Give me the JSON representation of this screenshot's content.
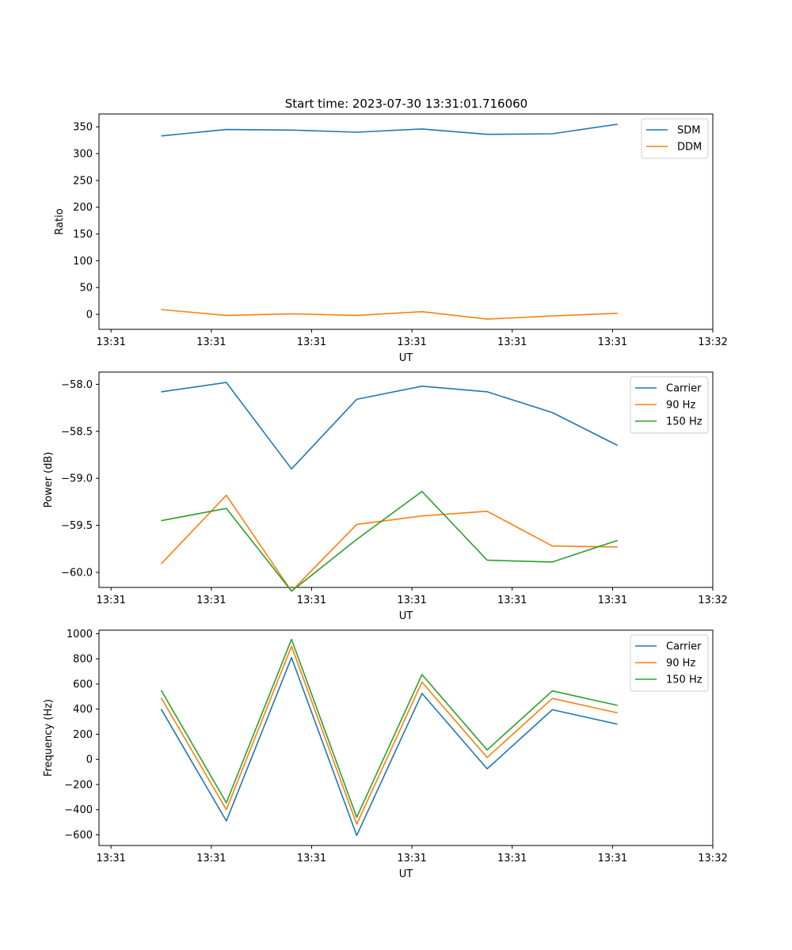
{
  "figure": {
    "title": "Start time: 2023-07-30 13:31:01.716060"
  },
  "chart_data": [
    {
      "type": "line",
      "xlabel": "UT",
      "ylabel": "Ratio",
      "x_tick_labels": [
        "13:31",
        "13:31",
        "13:31",
        "13:31",
        "13:31",
        "13:31",
        "13:32"
      ],
      "x": [
        0.5,
        1.15,
        1.8,
        2.45,
        3.1,
        3.75,
        4.4,
        5.05
      ],
      "xlim": [
        -0.12,
        6.0
      ],
      "ylim": [
        -28,
        374
      ],
      "yticks": [
        0,
        50,
        100,
        150,
        200,
        250,
        300,
        350
      ],
      "y_tick_labels": [
        "0",
        "50",
        "100",
        "150",
        "200",
        "250",
        "300",
        "350"
      ],
      "legend": "top-right",
      "series": [
        {
          "name": "SDM",
          "color": "#1f77b4",
          "values": [
            333,
            345,
            344,
            340,
            346,
            336,
            337,
            355
          ]
        },
        {
          "name": "DDM",
          "color": "#ff7f0e",
          "values": [
            9,
            -2,
            1,
            -2,
            5,
            -9,
            -3,
            2
          ]
        }
      ]
    },
    {
      "type": "line",
      "xlabel": "UT",
      "ylabel": "Power (dB)",
      "x_tick_labels": [
        "13:31",
        "13:31",
        "13:31",
        "13:31",
        "13:31",
        "13:31",
        "13:32"
      ],
      "x": [
        0.5,
        1.15,
        1.8,
        2.45,
        3.1,
        3.75,
        4.4,
        5.05
      ],
      "xlim": [
        -0.12,
        6.0
      ],
      "ylim": [
        -60.16,
        -57.87
      ],
      "yticks": [
        -60.0,
        -59.5,
        -59.0,
        -58.5,
        -58.0
      ],
      "y_tick_labels": [
        "−60.0",
        "−59.5",
        "−59.0",
        "−58.5",
        "−58.0"
      ],
      "legend": "top-right",
      "series": [
        {
          "name": "Carrier",
          "color": "#1f77b4",
          "values": [
            -58.08,
            -57.98,
            -58.9,
            -58.16,
            -58.02,
            -58.08,
            -58.3,
            -58.65
          ]
        },
        {
          "name": "90 Hz",
          "color": "#ff7f0e",
          "values": [
            -59.91,
            -59.18,
            -60.2,
            -59.49,
            -59.4,
            -59.35,
            -59.72,
            -59.73
          ]
        },
        {
          "name": "150 Hz",
          "color": "#2ca02c",
          "values": [
            -59.45,
            -59.32,
            -60.2,
            -59.65,
            -59.14,
            -59.87,
            -59.89,
            -59.66
          ]
        }
      ]
    },
    {
      "type": "line",
      "xlabel": "UT",
      "ylabel": "Frequency (Hz)",
      "x_tick_labels": [
        "13:31",
        "13:31",
        "13:31",
        "13:31",
        "13:31",
        "13:31",
        "13:32"
      ],
      "x": [
        0.5,
        1.15,
        1.8,
        2.45,
        3.1,
        3.75,
        4.4,
        5.05
      ],
      "xlim": [
        -0.12,
        6.0
      ],
      "ylim": [
        -685,
        1028
      ],
      "yticks": [
        -600,
        -400,
        -200,
        0,
        200,
        400,
        600,
        800,
        1000
      ],
      "y_tick_labels": [
        "−600",
        "−400",
        "−200",
        "0",
        "200",
        "400",
        "600",
        "800",
        "1000"
      ],
      "legend": "top-right",
      "series": [
        {
          "name": "Carrier",
          "color": "#1f77b4",
          "values": [
            400,
            -490,
            810,
            -605,
            525,
            -75,
            395,
            280
          ]
        },
        {
          "name": "90 Hz",
          "color": "#ff7f0e",
          "values": [
            490,
            -400,
            900,
            -515,
            615,
            15,
            485,
            370
          ]
        },
        {
          "name": "150 Hz",
          "color": "#2ca02c",
          "values": [
            550,
            -345,
            955,
            -460,
            675,
            75,
            545,
            430
          ]
        }
      ]
    }
  ]
}
